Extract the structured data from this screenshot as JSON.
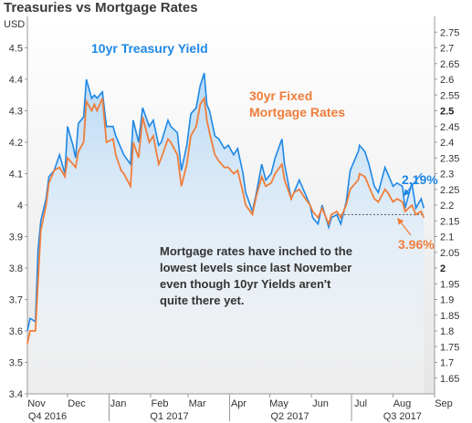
{
  "chart_data": {
    "type": "line",
    "title": "Treasuries vs Mortgage Rates",
    "left_axis_unit": "USD",
    "left_axis": {
      "min": 3.4,
      "max": 4.6,
      "ticks": [
        3.4,
        3.5,
        3.6,
        3.7,
        3.8,
        3.9,
        4,
        4.1,
        4.2,
        4.3,
        4.4,
        4.5
      ]
    },
    "right_axis": {
      "min": 1.6,
      "max": 2.8,
      "ticks": [
        1.65,
        1.7,
        1.75,
        1.8,
        1.85,
        1.9,
        1.95,
        2,
        2.05,
        2.1,
        2.15,
        2.2,
        2.25,
        2.3,
        2.35,
        2.4,
        2.45,
        2.5,
        2.55,
        2.6,
        2.65,
        2.7,
        2.75
      ],
      "bold_ticks": [
        2,
        2.5
      ]
    },
    "x_axis": {
      "min": "2016-11-01",
      "max": "2017-09-01",
      "months": [
        {
          "label": "Nov",
          "date": "2016-11-01"
        },
        {
          "label": "Dec",
          "date": "2016-12-01"
        },
        {
          "label": "Jan",
          "date": "2017-01-01"
        },
        {
          "label": "Feb",
          "date": "2017-02-01"
        },
        {
          "label": "Mar",
          "date": "2017-03-01"
        },
        {
          "label": "Apr",
          "date": "2017-04-01"
        },
        {
          "label": "May",
          "date": "2017-05-01"
        },
        {
          "label": "Jun",
          "date": "2017-06-01"
        },
        {
          "label": "Jul",
          "date": "2017-07-01"
        },
        {
          "label": "Aug",
          "date": "2017-08-01"
        },
        {
          "label": "Sep",
          "date": "2017-09-01"
        }
      ],
      "quarters": [
        {
          "label": "Q4 2016",
          "date": "2016-11-16"
        },
        {
          "label": "Q1 2017",
          "date": "2017-02-15"
        },
        {
          "label": "Q2 2017",
          "date": "2017-05-16"
        },
        {
          "label": "Q3 2017",
          "date": "2017-08-08"
        }
      ],
      "quarter_dividers": [
        "2017-01-01",
        "2017-04-01",
        "2017-07-01"
      ]
    },
    "series": [
      {
        "name": "10yr Treasury Yield",
        "axis": "right",
        "color": "#1e88e5",
        "points": [
          [
            "2016-11-01",
            1.8
          ],
          [
            "2016-11-03",
            1.84
          ],
          [
            "2016-11-07",
            1.83
          ],
          [
            "2016-11-09",
            2.06
          ],
          [
            "2016-11-11",
            2.15
          ],
          [
            "2016-11-15",
            2.22
          ],
          [
            "2016-11-17",
            2.29
          ],
          [
            "2016-11-21",
            2.31
          ],
          [
            "2016-11-25",
            2.36
          ],
          [
            "2016-11-29",
            2.3
          ],
          [
            "2016-12-01",
            2.45
          ],
          [
            "2016-12-05",
            2.39
          ],
          [
            "2016-12-07",
            2.35
          ],
          [
            "2016-12-09",
            2.46
          ],
          [
            "2016-12-13",
            2.48
          ],
          [
            "2016-12-15",
            2.6
          ],
          [
            "2016-12-19",
            2.54
          ],
          [
            "2016-12-21",
            2.55
          ],
          [
            "2016-12-23",
            2.54
          ],
          [
            "2016-12-27",
            2.56
          ],
          [
            "2016-12-30",
            2.45
          ],
          [
            "2017-01-04",
            2.45
          ],
          [
            "2017-01-06",
            2.42
          ],
          [
            "2017-01-10",
            2.38
          ],
          [
            "2017-01-12",
            2.36
          ],
          [
            "2017-01-17",
            2.33
          ],
          [
            "2017-01-19",
            2.47
          ],
          [
            "2017-01-23",
            2.4
          ],
          [
            "2017-01-26",
            2.51
          ],
          [
            "2017-01-31",
            2.45
          ],
          [
            "2017-02-03",
            2.47
          ],
          [
            "2017-02-07",
            2.39
          ],
          [
            "2017-02-09",
            2.4
          ],
          [
            "2017-02-14",
            2.47
          ],
          [
            "2017-02-16",
            2.45
          ],
          [
            "2017-02-21",
            2.43
          ],
          [
            "2017-02-24",
            2.31
          ],
          [
            "2017-02-28",
            2.39
          ],
          [
            "2017-03-03",
            2.49
          ],
          [
            "2017-03-07",
            2.51
          ],
          [
            "2017-03-10",
            2.58
          ],
          [
            "2017-03-13",
            2.62
          ],
          [
            "2017-03-15",
            2.52
          ],
          [
            "2017-03-17",
            2.5
          ],
          [
            "2017-03-21",
            2.42
          ],
          [
            "2017-03-24",
            2.41
          ],
          [
            "2017-03-28",
            2.38
          ],
          [
            "2017-03-31",
            2.39
          ],
          [
            "2017-04-04",
            2.36
          ],
          [
            "2017-04-07",
            2.38
          ],
          [
            "2017-04-11",
            2.3
          ],
          [
            "2017-04-13",
            2.24
          ],
          [
            "2017-04-18",
            2.18
          ],
          [
            "2017-04-21",
            2.24
          ],
          [
            "2017-04-25",
            2.33
          ],
          [
            "2017-04-28",
            2.28
          ],
          [
            "2017-05-02",
            2.3
          ],
          [
            "2017-05-05",
            2.35
          ],
          [
            "2017-05-10",
            2.41
          ],
          [
            "2017-05-12",
            2.33
          ],
          [
            "2017-05-17",
            2.22
          ],
          [
            "2017-05-19",
            2.24
          ],
          [
            "2017-05-23",
            2.28
          ],
          [
            "2017-05-26",
            2.25
          ],
          [
            "2017-05-31",
            2.2
          ],
          [
            "2017-06-02",
            2.16
          ],
          [
            "2017-06-06",
            2.14
          ],
          [
            "2017-06-09",
            2.2
          ],
          [
            "2017-06-14",
            2.13
          ],
          [
            "2017-06-16",
            2.16
          ],
          [
            "2017-06-20",
            2.17
          ],
          [
            "2017-06-23",
            2.14
          ],
          [
            "2017-06-27",
            2.21
          ],
          [
            "2017-06-30",
            2.31
          ],
          [
            "2017-07-06",
            2.37
          ],
          [
            "2017-07-07",
            2.39
          ],
          [
            "2017-07-11",
            2.37
          ],
          [
            "2017-07-14",
            2.33
          ],
          [
            "2017-07-18",
            2.26
          ],
          [
            "2017-07-21",
            2.24
          ],
          [
            "2017-07-26",
            2.32
          ],
          [
            "2017-07-28",
            2.3
          ],
          [
            "2017-08-01",
            2.26
          ],
          [
            "2017-08-04",
            2.27
          ],
          [
            "2017-08-08",
            2.26
          ],
          [
            "2017-08-10",
            2.19
          ],
          [
            "2017-08-15",
            2.27
          ],
          [
            "2017-08-18",
            2.19
          ],
          [
            "2017-08-22",
            2.22
          ],
          [
            "2017-08-24",
            2.19
          ]
        ],
        "end_label": "2.19%"
      },
      {
        "name": "30yr Fixed\nMortgage Rates",
        "axis": "left",
        "color": "#f07d3a",
        "points": [
          [
            "2016-11-01",
            3.56
          ],
          [
            "2016-11-03",
            3.6
          ],
          [
            "2016-11-07",
            3.6
          ],
          [
            "2016-11-09",
            3.76
          ],
          [
            "2016-11-11",
            3.92
          ],
          [
            "2016-11-15",
            4.0
          ],
          [
            "2016-11-17",
            4.07
          ],
          [
            "2016-11-21",
            4.11
          ],
          [
            "2016-11-25",
            4.12
          ],
          [
            "2016-11-29",
            4.09
          ],
          [
            "2016-12-01",
            4.15
          ],
          [
            "2016-12-05",
            4.13
          ],
          [
            "2016-12-07",
            4.12
          ],
          [
            "2016-12-09",
            4.17
          ],
          [
            "2016-12-13",
            4.2
          ],
          [
            "2016-12-15",
            4.33
          ],
          [
            "2016-12-19",
            4.3
          ],
          [
            "2016-12-21",
            4.32
          ],
          [
            "2016-12-23",
            4.3
          ],
          [
            "2016-12-27",
            4.34
          ],
          [
            "2016-12-30",
            4.2
          ],
          [
            "2017-01-04",
            4.21
          ],
          [
            "2017-01-06",
            4.16
          ],
          [
            "2017-01-10",
            4.11
          ],
          [
            "2017-01-12",
            4.1
          ],
          [
            "2017-01-17",
            4.06
          ],
          [
            "2017-01-19",
            4.2
          ],
          [
            "2017-01-23",
            4.15
          ],
          [
            "2017-01-26",
            4.28
          ],
          [
            "2017-01-31",
            4.2
          ],
          [
            "2017-02-03",
            4.22
          ],
          [
            "2017-02-07",
            4.13
          ],
          [
            "2017-02-09",
            4.15
          ],
          [
            "2017-02-14",
            4.21
          ],
          [
            "2017-02-16",
            4.2
          ],
          [
            "2017-02-21",
            4.16
          ],
          [
            "2017-02-24",
            4.06
          ],
          [
            "2017-02-28",
            4.13
          ],
          [
            "2017-03-03",
            4.22
          ],
          [
            "2017-03-07",
            4.25
          ],
          [
            "2017-03-10",
            4.32
          ],
          [
            "2017-03-13",
            4.34
          ],
          [
            "2017-03-15",
            4.27
          ],
          [
            "2017-03-17",
            4.23
          ],
          [
            "2017-03-21",
            4.16
          ],
          [
            "2017-03-24",
            4.14
          ],
          [
            "2017-03-28",
            4.12
          ],
          [
            "2017-03-31",
            4.12
          ],
          [
            "2017-04-04",
            4.1
          ],
          [
            "2017-04-07",
            4.11
          ],
          [
            "2017-04-11",
            4.04
          ],
          [
            "2017-04-13",
            4.0
          ],
          [
            "2017-04-18",
            3.97
          ],
          [
            "2017-04-21",
            4.03
          ],
          [
            "2017-04-25",
            4.09
          ],
          [
            "2017-04-28",
            4.06
          ],
          [
            "2017-05-02",
            4.07
          ],
          [
            "2017-05-05",
            4.1
          ],
          [
            "2017-05-10",
            4.13
          ],
          [
            "2017-05-12",
            4.08
          ],
          [
            "2017-05-17",
            4.02
          ],
          [
            "2017-05-19",
            4.04
          ],
          [
            "2017-05-23",
            4.05
          ],
          [
            "2017-05-26",
            4.03
          ],
          [
            "2017-05-31",
            4.0
          ],
          [
            "2017-06-02",
            3.98
          ],
          [
            "2017-06-06",
            3.96
          ],
          [
            "2017-06-09",
            3.99
          ],
          [
            "2017-06-14",
            3.94
          ],
          [
            "2017-06-16",
            3.97
          ],
          [
            "2017-06-20",
            3.98
          ],
          [
            "2017-06-23",
            3.96
          ],
          [
            "2017-06-27",
            4.0
          ],
          [
            "2017-06-30",
            4.05
          ],
          [
            "2017-07-06",
            4.08
          ],
          [
            "2017-07-07",
            4.1
          ],
          [
            "2017-07-11",
            4.09
          ],
          [
            "2017-07-14",
            4.06
          ],
          [
            "2017-07-18",
            4.02
          ],
          [
            "2017-07-21",
            4.01
          ],
          [
            "2017-07-26",
            4.05
          ],
          [
            "2017-07-28",
            4.04
          ],
          [
            "2017-08-01",
            4.01
          ],
          [
            "2017-08-04",
            4.02
          ],
          [
            "2017-08-08",
            4.01
          ],
          [
            "2017-08-10",
            3.98
          ],
          [
            "2017-08-15",
            4.0
          ],
          [
            "2017-08-18",
            3.97
          ],
          [
            "2017-08-22",
            3.98
          ],
          [
            "2017-08-24",
            3.96
          ]
        ],
        "end_label": "3.96%"
      }
    ],
    "reference_line": {
      "value": 3.97,
      "axis": "left",
      "from": "2017-06-20",
      "to": "2017-09-01",
      "style": "dashed"
    },
    "annotation": "Mortgage rates have inched to the\nlowest levels since last November\neven though 10yr Yields aren't\nquite there yet.",
    "background": "light-gray gradient",
    "grid": false
  }
}
